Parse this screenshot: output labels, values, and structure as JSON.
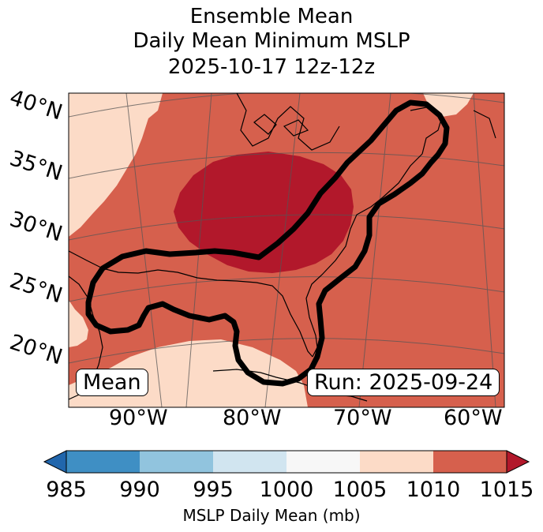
{
  "title": {
    "line1": "Ensemble Mean",
    "line2": "Daily Mean Minimum MSLP",
    "line3": "2025-10-17 12z-12z"
  },
  "map": {
    "lat_labels": [
      "40°N",
      "35°N",
      "30°N",
      "25°N",
      "20°N"
    ],
    "lon_labels": [
      "90°W",
      "80°W",
      "70°W",
      "60°W"
    ],
    "left_box": "Mean",
    "right_box": "Run: 2025-09-24"
  },
  "colorbar": {
    "ticks": [
      "985",
      "990",
      "995",
      "1000",
      "1005",
      "1010",
      "1015"
    ],
    "label": "MSLP Daily Mean (mb)",
    "colors": [
      "#3f8fc4",
      "#91c4de",
      "#d1e5f0",
      "#f7f7f7",
      "#fcdbc7",
      "#d6604d",
      "#b2182b"
    ]
  }
}
